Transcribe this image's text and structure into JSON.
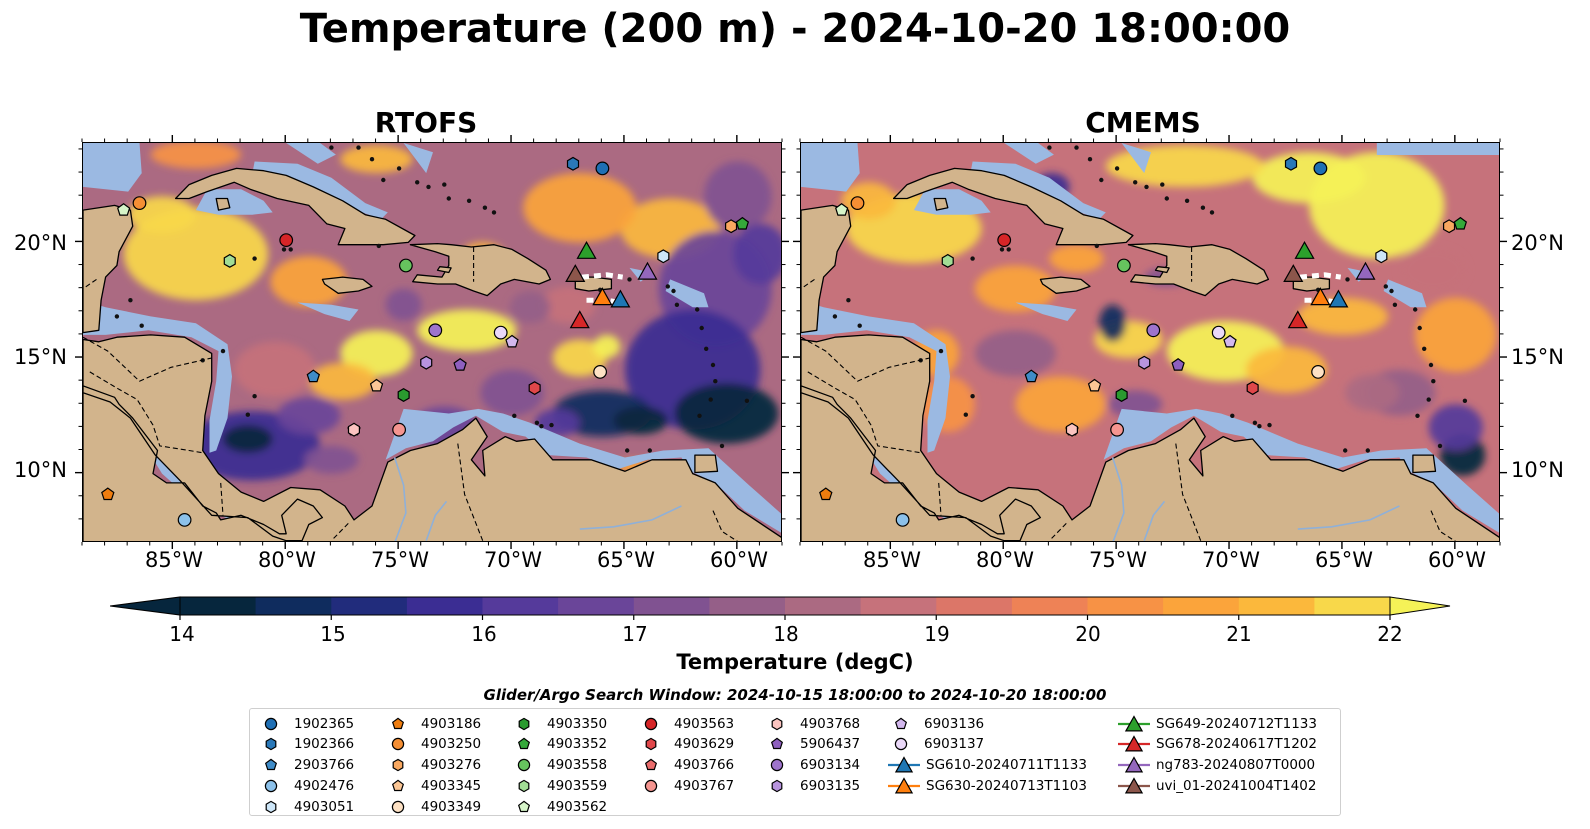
{
  "title": "Temperature (200 m) - 2024-10-20 18:00:00",
  "panels": [
    {
      "title": "RTOFS",
      "variant": "rtofs"
    },
    {
      "title": "CMEMS",
      "variant": "cmems"
    }
  ],
  "axes": {
    "lat_ticks": [
      "10°N",
      "15°N",
      "20°N"
    ],
    "lon_ticks": [
      "85°W",
      "80°W",
      "75°W",
      "70°W",
      "65°W",
      "60°W"
    ],
    "lon_range": [
      -89,
      -58
    ],
    "lat_range": [
      7,
      24.3
    ]
  },
  "colorbar": {
    "label": "Temperature (degC)",
    "ticks": [
      "14",
      "15",
      "16",
      "17",
      "18",
      "19",
      "20",
      "21",
      "22"
    ],
    "range": [
      14,
      22
    ],
    "extend": "both",
    "colors": [
      "#06263d",
      "#0f2c5e",
      "#212c7c",
      "#3b2d93",
      "#553a9b",
      "#6a4599",
      "#805291",
      "#955f88",
      "#ab6a82",
      "#c6727b",
      "#dc7668",
      "#ee8256",
      "#f79245",
      "#fba43b",
      "#fbb83c",
      "#f8d84a",
      "#f5f257"
    ],
    "land_color": "#d2b48c",
    "shelf_color": "#9bb9e2"
  },
  "search_window": "Glider/Argo Search Window: 2024-10-15 18:00:00 to 2024-10-20 18:00:00",
  "legend": [
    {
      "label": "1902365",
      "marker": "circle",
      "color": "#1f6fb4"
    },
    {
      "label": "1902366",
      "marker": "hexagon",
      "color": "#2a78b8"
    },
    {
      "label": "2903766",
      "marker": "pentagon",
      "color": "#3f8cc8"
    },
    {
      "label": "4902476",
      "marker": "circle",
      "color": "#8cc1ea"
    },
    {
      "label": "4903051",
      "marker": "hexagon",
      "color": "#cde6f8"
    },
    {
      "label": "4903186",
      "marker": "pentagon",
      "color": "#ef7d0f"
    },
    {
      "label": "4903250",
      "marker": "circle",
      "color": "#f58f34"
    },
    {
      "label": "4903276",
      "marker": "hexagon",
      "color": "#f9a860"
    },
    {
      "label": "4903345",
      "marker": "pentagon",
      "color": "#fbc695"
    },
    {
      "label": "4903349",
      "marker": "circle",
      "color": "#fde1c4"
    },
    {
      "label": "4903350",
      "marker": "hexagon",
      "color": "#2a9a2f"
    },
    {
      "label": "4903352",
      "marker": "pentagon",
      "color": "#35a83a"
    },
    {
      "label": "4903558",
      "marker": "circle",
      "color": "#66c35e"
    },
    {
      "label": "4903559",
      "marker": "hexagon",
      "color": "#a2dd95"
    },
    {
      "label": "4903562",
      "marker": "pentagon",
      "color": "#d6f4c8"
    },
    {
      "label": "4903563",
      "marker": "circle",
      "color": "#d62527"
    },
    {
      "label": "4903629",
      "marker": "hexagon",
      "color": "#e0474a"
    },
    {
      "label": "4903766",
      "marker": "pentagon",
      "color": "#ea6c6c"
    },
    {
      "label": "4903767",
      "marker": "circle",
      "color": "#f59590"
    },
    {
      "label": "4903768",
      "marker": "hexagon",
      "color": "#fbc4c0"
    },
    {
      "label": "5906437",
      "marker": "pentagon",
      "color": "#8e5fbf"
    },
    {
      "label": "6903134",
      "marker": "circle",
      "color": "#9e74cc"
    },
    {
      "label": "6903135",
      "marker": "hexagon",
      "color": "#b894de"
    },
    {
      "label": "6903136",
      "marker": "pentagon",
      "color": "#d3b8ee"
    },
    {
      "label": "6903137",
      "marker": "circle",
      "color": "#ead8f8"
    },
    {
      "label": "SG610-20240711T1133",
      "marker": "triangle",
      "color": "#1f77b4"
    },
    {
      "label": "SG630-20240713T1103",
      "marker": "triangle",
      "color": "#ff7f0e"
    },
    {
      "label": "SG649-20240712T1133",
      "marker": "triangle",
      "color": "#2ca02c"
    },
    {
      "label": "SG678-20240617T1202",
      "marker": "triangle",
      "color": "#d62728"
    },
    {
      "label": "ng783-20240807T0000",
      "marker": "triangle",
      "color": "#9467bd"
    },
    {
      "label": "uvi_01-20241004T1402",
      "marker": "triangle",
      "color": "#8c564b"
    }
  ],
  "observations": [
    {
      "id": "1902365",
      "lon": -66.0,
      "lat": 23.2
    },
    {
      "id": "1902366",
      "lon": -67.3,
      "lat": 23.4
    },
    {
      "id": "2903766",
      "lon": -78.8,
      "lat": 14.2
    },
    {
      "id": "4902476",
      "lon": -84.5,
      "lat": 8.0
    },
    {
      "id": "4903051",
      "lon": -63.3,
      "lat": 19.4
    },
    {
      "id": "4903186",
      "lon": -87.9,
      "lat": 9.1
    },
    {
      "id": "4903250",
      "lon": -86.5,
      "lat": 21.7
    },
    {
      "id": "4903276",
      "lon": -60.3,
      "lat": 20.7
    },
    {
      "id": "4903345",
      "lon": -76.0,
      "lat": 13.8
    },
    {
      "id": "4903349",
      "lon": -66.1,
      "lat": 14.4
    },
    {
      "id": "4903350",
      "lon": -74.8,
      "lat": 13.4
    },
    {
      "id": "4903352",
      "lon": -59.8,
      "lat": 20.8
    },
    {
      "id": "4903558",
      "lon": -74.7,
      "lat": 19.0
    },
    {
      "id": "4903559",
      "lon": -82.5,
      "lat": 19.2
    },
    {
      "id": "4903562",
      "lon": -87.2,
      "lat": 21.4
    },
    {
      "id": "4903563",
      "lon": -80.0,
      "lat": 20.1
    },
    {
      "id": "4903629",
      "lon": -69.0,
      "lat": 13.7
    },
    {
      "id": "4903766",
      "lon": -77.0,
      "lat": 11.9
    },
    {
      "id": "4903767",
      "lon": -75.0,
      "lat": 11.9
    },
    {
      "id": "4903768",
      "lon": -77.0,
      "lat": 11.9
    },
    {
      "id": "5906437",
      "lon": -72.3,
      "lat": 14.7
    },
    {
      "id": "6903134",
      "lon": -73.4,
      "lat": 16.2
    },
    {
      "id": "6903135",
      "lon": -73.8,
      "lat": 14.8
    },
    {
      "id": "6903136",
      "lon": -70.0,
      "lat": 15.7
    },
    {
      "id": "6903137",
      "lon": -70.5,
      "lat": 16.1
    },
    {
      "id": "SG610-20240711T1133",
      "lon": -65.2,
      "lat": 17.5
    },
    {
      "id": "SG630-20240713T1103",
      "lon": -66.0,
      "lat": 17.6
    },
    {
      "id": "SG649-20240712T1133",
      "lon": -66.7,
      "lat": 19.6
    },
    {
      "id": "SG678-20240617T1202",
      "lon": -67.0,
      "lat": 16.6
    },
    {
      "id": "ng783-20240807T0000",
      "lon": -64.0,
      "lat": 18.7
    },
    {
      "id": "uvi_01-20241004T1402",
      "lon": -67.2,
      "lat": 18.6
    }
  ]
}
